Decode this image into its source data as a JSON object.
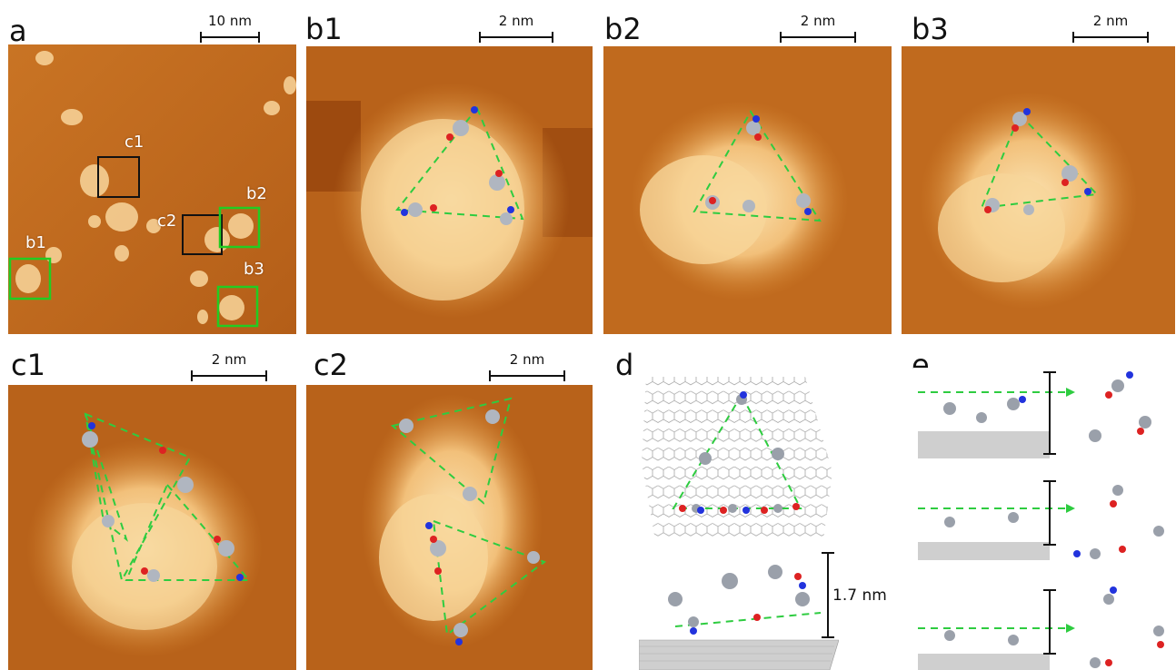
{
  "panels": {
    "a": {
      "label": "a",
      "scale": "10 nm"
    },
    "b1": {
      "label": "b1",
      "scale": "2 nm"
    },
    "b2": {
      "label": "b2",
      "scale": "2 nm"
    },
    "b3": {
      "label": "b3",
      "scale": "2 nm"
    },
    "c1": {
      "label": "c1",
      "scale": "2 nm"
    },
    "c2": {
      "label": "c2",
      "scale": "2 nm"
    },
    "d": {
      "label": "d",
      "height": "1.7 nm"
    },
    "e": {
      "label": "e"
    }
  },
  "overview_boxes": {
    "c1": "c1",
    "c2": "c2",
    "b1": "b1",
    "b2": "b2",
    "b3": "b3"
  },
  "colors": {
    "stm_dark": "#8a3a08",
    "stm_mid": "#c8741f",
    "stm_light": "#f7d69a",
    "outline_green": "#2ecc40",
    "box_black": "#111111",
    "box_green": "#22cc22"
  }
}
